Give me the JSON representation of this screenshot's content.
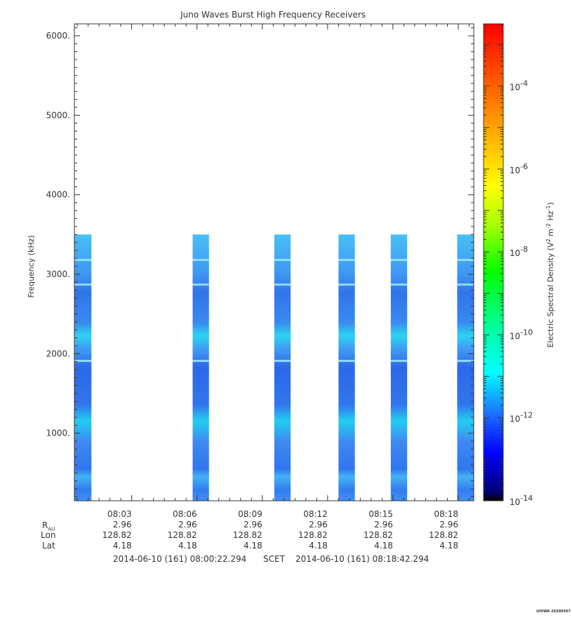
{
  "chart_data": {
    "type": "heatmap",
    "title": "Juno Waves Burst High Frequency Receivers",
    "ylabel": "Frequency (kHz)",
    "ylim": [
      150,
      6150
    ],
    "yticks": [
      1000,
      2000,
      3000,
      4000,
      5000,
      6000
    ],
    "ytick_labels": [
      "1000.",
      "2000.",
      "3000.",
      "4000.",
      "5000.",
      "6000."
    ],
    "xlim_minutes": [
      0.37,
      18.71
    ],
    "time_ticks": [
      {
        "minute": 3,
        "label": "08:03",
        "r_au": "2.96",
        "lon": "128.82",
        "lat": "4.18"
      },
      {
        "minute": 6,
        "label": "08:06",
        "r_au": "2.96",
        "lon": "128.82",
        "lat": "4.18"
      },
      {
        "minute": 9,
        "label": "08:09",
        "r_au": "2.96",
        "lon": "128.82",
        "lat": "4.18"
      },
      {
        "minute": 12,
        "label": "08:12",
        "r_au": "2.96",
        "lon": "128.82",
        "lat": "4.18"
      },
      {
        "minute": 15,
        "label": "08:15",
        "r_au": "2.96",
        "lon": "128.82",
        "lat": "4.18"
      },
      {
        "minute": 18,
        "label": "08:18",
        "r_au": "2.96",
        "lon": "128.82",
        "lat": "4.18"
      }
    ],
    "row_labels": {
      "r_au_main": "R",
      "r_au_sub": "AU",
      "lon": "Lon",
      "lat": "Lat"
    },
    "time_range": {
      "start": "2014-06-10 (161) 08:00:22.294",
      "mid": "SCET",
      "end": "2014-06-10 (161) 08:18:42.294"
    },
    "bursts": [
      {
        "start_minute": 0.37,
        "end_minute": 1.15,
        "fmin_khz": 150,
        "fmax_khz": 3500
      },
      {
        "start_minute": 5.8,
        "end_minute": 6.55,
        "fmin_khz": 150,
        "fmax_khz": 3500
      },
      {
        "start_minute": 9.55,
        "end_minute": 10.3,
        "fmin_khz": 150,
        "fmax_khz": 3500
      },
      {
        "start_minute": 12.5,
        "end_minute": 13.25,
        "fmin_khz": 150,
        "fmax_khz": 3500
      },
      {
        "start_minute": 14.9,
        "end_minute": 15.65,
        "fmin_khz": 150,
        "fmax_khz": 3500
      },
      {
        "start_minute": 17.95,
        "end_minute": 18.71,
        "fmin_khz": 150,
        "fmax_khz": 3500
      }
    ],
    "colorbar": {
      "label_main": "Electric Spectral Density (V",
      "label_sup1": "2",
      "label_mid": " m",
      "label_sup2": "-2",
      "label_mid2": " Hz",
      "label_sup3": "-1",
      "label_end": ")",
      "scale": "log",
      "min_exp": -14,
      "max_exp": -2.5,
      "ticks": [
        {
          "exp": -14,
          "base": "10",
          "sup": "-14"
        },
        {
          "exp": -12,
          "base": "10",
          "sup": "-12"
        },
        {
          "exp": -10,
          "base": "10",
          "sup": "-10"
        },
        {
          "exp": -8,
          "base": "10",
          "sup": "-8"
        },
        {
          "exp": -6,
          "base": "10",
          "sup": "-6"
        },
        {
          "exp": -4,
          "base": "10",
          "sup": "-4"
        }
      ]
    },
    "grid": false,
    "credit": "UIOWA 20200307"
  }
}
